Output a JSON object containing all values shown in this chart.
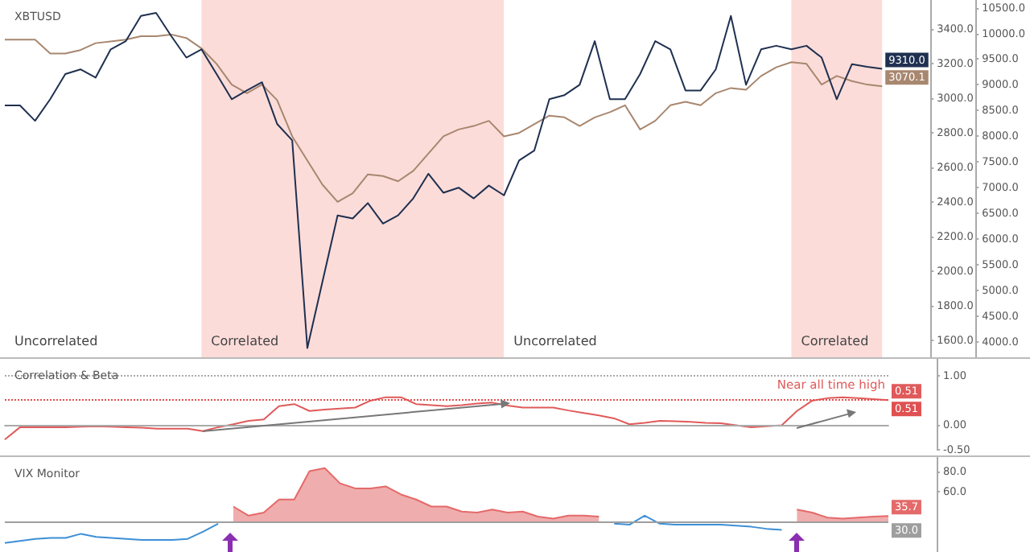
{
  "chart_data": [
    {
      "type": "line",
      "title": "XBTUSD",
      "tick_labels": "y",
      "ylim": [
        1500,
        3570
      ],
      "categories": [
        null,
        null,
        null,
        null,
        null,
        null,
        null,
        null,
        null,
        null,
        null,
        null,
        null,
        null,
        null,
        null,
        null,
        null,
        null,
        null,
        null,
        null,
        null,
        null,
        null,
        null,
        null,
        null,
        null,
        null,
        null,
        null,
        null,
        null,
        null,
        null,
        null,
        null,
        null,
        null,
        null,
        null,
        null,
        null,
        null,
        null,
        null,
        null,
        null,
        null,
        null,
        null,
        null,
        null,
        null,
        null,
        null,
        null,
        null
      ],
      "yticks": [
        {
          "value": 1600,
          "label": "1600.0"
        },
        {
          "value": 1800,
          "label": "1800.0"
        },
        {
          "value": 2000,
          "label": "2000.0"
        },
        {
          "value": 2200,
          "label": "2200.0"
        },
        {
          "value": 2400,
          "label": "2400.0"
        },
        {
          "value": 2600,
          "label": "2600.0"
        },
        {
          "value": 2800,
          "label": "2800.0"
        },
        {
          "value": 3000,
          "label": "3000.0"
        },
        {
          "value": 3200,
          "label": "3200.0"
        },
        {
          "value": 3400,
          "label": "3400.0"
        }
      ],
      "y2lim": [
        3700,
        10650
      ],
      "y2ticks": [
        {
          "value": 4000,
          "label": "4000.0"
        },
        {
          "value": 4500,
          "label": "4500.0"
        },
        {
          "value": 5000,
          "label": "5000.0"
        },
        {
          "value": 5500,
          "label": "5500.0"
        },
        {
          "value": 6000,
          "label": "6000.0"
        },
        {
          "value": 6500,
          "label": "6500.0"
        },
        {
          "value": 7000,
          "label": "7000.0"
        },
        {
          "value": 7500,
          "label": "7500.0"
        },
        {
          "value": 8000,
          "label": "8000.0"
        },
        {
          "value": 8500,
          "label": "8500.0"
        },
        {
          "value": 9000,
          "label": "9000.0"
        },
        {
          "value": 9500,
          "label": "9500.0"
        },
        {
          "value": 10000,
          "label": "10000.0"
        },
        {
          "value": 10500,
          "label": "10500.0"
        }
      ],
      "annotations": [
        "Uncorrelated",
        "Correlated",
        "Uncorrelated",
        "Correlated"
      ],
      "series": [
        {
          "color": "#a8876f",
          "values": [
            3340,
            3340,
            3340,
            3260,
            3260,
            3280,
            3320,
            3330,
            3340,
            3360,
            3360,
            3370,
            3350,
            3290,
            3200,
            3080,
            3030,
            3080,
            2990,
            2780,
            2640,
            2500,
            2400,
            2450,
            2560,
            2550,
            2520,
            2580,
            2680,
            2780,
            2820,
            2840,
            2870,
            2780,
            2800,
            2850,
            2900,
            2890,
            2840,
            2890,
            2920,
            2960,
            2820,
            2870,
            2960,
            2980,
            2960,
            3030,
            3060,
            3050,
            3130,
            3180,
            3210,
            3200,
            3080,
            3130,
            3100,
            3080,
            3070.1
          ],
          "value_labels": [
            null,
            null,
            null,
            null,
            null,
            null,
            null,
            null,
            null,
            null,
            null,
            null,
            null,
            null,
            null,
            null,
            null,
            null,
            null,
            null,
            null,
            null,
            null,
            null,
            null,
            null,
            null,
            null,
            null,
            null,
            null,
            null,
            null,
            null,
            null,
            null,
            null,
            null,
            null,
            null,
            null,
            null,
            null,
            null,
            null,
            null,
            null,
            null,
            null,
            null,
            null,
            null,
            null,
            null,
            null,
            null,
            null,
            null,
            "3070.1"
          ]
        },
        {
          "axis": "y2",
          "color": "#1f3050",
          "values": [
            8600,
            8600,
            8300,
            8720,
            9210,
            9300,
            9140,
            9690,
            9850,
            10340,
            10400,
            9950,
            9530,
            9690,
            9210,
            8720,
            8890,
            9050,
            8240,
            7920,
            3880,
            5170,
            6460,
            6400,
            6700,
            6300,
            6460,
            6790,
            7270,
            6900,
            7000,
            6790,
            7040,
            6850,
            7530,
            7720,
            8720,
            8800,
            9000,
            9850,
            8720,
            8720,
            9210,
            9850,
            9690,
            8890,
            8890,
            9300,
            10340,
            9000,
            9690,
            9760,
            9690,
            9760,
            9530,
            8720,
            9400,
            9350,
            9310
          ],
          "value_labels": [
            null,
            null,
            null,
            null,
            null,
            null,
            null,
            null,
            null,
            null,
            null,
            null,
            null,
            null,
            null,
            null,
            null,
            null,
            null,
            null,
            null,
            null,
            null,
            null,
            null,
            null,
            null,
            null,
            null,
            null,
            null,
            null,
            null,
            null,
            null,
            null,
            null,
            null,
            null,
            null,
            null,
            null,
            null,
            null,
            null,
            null,
            null,
            null,
            null,
            null,
            null,
            null,
            null,
            null,
            null,
            null,
            null,
            null,
            "9310.0"
          ]
        }
      ]
    },
    {
      "type": "line",
      "title": "Correlation & Beta",
      "tick_labels": "y",
      "ylim": [
        -0.5,
        1.35
      ],
      "categories": [
        null,
        null,
        null,
        null,
        null,
        null,
        null,
        null,
        null,
        null,
        null,
        null,
        null,
        null,
        null,
        null,
        null,
        null,
        null,
        null,
        null,
        null,
        null,
        null,
        null,
        null,
        null,
        null,
        null,
        null,
        null,
        null,
        null,
        null,
        null,
        null,
        null,
        null,
        null,
        null,
        null,
        null,
        null,
        null,
        null,
        null,
        null,
        null,
        null,
        null,
        null,
        null,
        null,
        null,
        null,
        null,
        null,
        null,
        null
      ],
      "yticks": [
        {
          "value": -0.5,
          "label": "-0.50"
        },
        {
          "value": 0,
          "label": "0.00"
        },
        {
          "value": 1,
          "label": "1.00"
        }
      ],
      "ref_lines": [
        {
          "axis": "y",
          "value": 1,
          "color": "#aaaaaa",
          "line_style": "dotted"
        },
        {
          "axis": "y",
          "value": 0,
          "color": "#aaaaaa",
          "line_style": "solid"
        },
        {
          "axis": "y",
          "value": 0.51,
          "label": "0.51",
          "color": "#e05050",
          "line_style": "dotted"
        }
      ],
      "annotations": [
        "Near all time high"
      ],
      "series": [
        {
          "color": "#e05a5a",
          "values": [
            -0.29,
            -0.04,
            -0.04,
            -0.04,
            -0.04,
            -0.03,
            -0.02,
            -0.03,
            -0.04,
            -0.05,
            -0.07,
            -0.07,
            -0.07,
            -0.12,
            -0.04,
            0.02,
            0.09,
            0.12,
            0.39,
            0.43,
            0.29,
            0.32,
            0.34,
            0.36,
            0.5,
            0.57,
            0.57,
            0.43,
            0.41,
            0.39,
            0.41,
            0.44,
            0.46,
            0.4,
            0.36,
            0.36,
            0.36,
            0.3,
            0.25,
            0.2,
            0.14,
            0.02,
            0.05,
            0.09,
            0.08,
            0.07,
            0.05,
            0.04,
            0,
            -0.04,
            -0.02,
            0,
            0.29,
            0.5,
            0.55,
            0.57,
            0.55,
            0.53,
            0.51
          ],
          "value_labels": [
            null,
            null,
            null,
            null,
            null,
            null,
            null,
            null,
            null,
            null,
            null,
            null,
            null,
            null,
            null,
            null,
            null,
            null,
            null,
            null,
            null,
            null,
            null,
            null,
            null,
            null,
            null,
            null,
            null,
            null,
            null,
            null,
            null,
            null,
            null,
            null,
            null,
            null,
            null,
            null,
            null,
            null,
            null,
            null,
            null,
            null,
            null,
            null,
            null,
            null,
            null,
            null,
            null,
            null,
            null,
            null,
            null,
            null,
            "0.51"
          ]
        }
      ]
    },
    {
      "type": "line",
      "title": "VIX Monitor",
      "tick_labels": "y",
      "ylim": [
        0,
        94
      ],
      "categories": [
        null,
        null,
        null,
        null,
        null,
        null,
        null,
        null,
        null,
        null,
        null,
        null,
        null,
        null,
        null,
        null,
        null,
        null,
        null,
        null,
        null,
        null,
        null,
        null,
        null,
        null,
        null,
        null,
        null,
        null,
        null,
        null,
        null,
        null,
        null,
        null,
        null,
        null,
        null,
        null,
        null,
        null,
        null,
        null,
        null,
        null,
        null,
        null,
        null,
        null,
        null,
        null,
        null,
        null,
        null,
        null,
        null,
        null,
        null
      ],
      "yticks": [
        {
          "value": 60,
          "label": "60.0"
        },
        {
          "value": 80,
          "label": "80.0"
        }
      ],
      "ref_lines": [
        {
          "axis": "y",
          "value": 30,
          "label": "30.0",
          "color": "#9e9e9e",
          "line_style": "solid"
        }
      ],
      "series": [
        {
          "color": "#3d8fd6",
          "values": [
            9,
            11,
            13,
            14,
            14,
            18,
            15,
            14,
            13,
            12,
            12,
            12,
            13,
            20,
            28,
            null,
            null,
            null,
            null,
            null,
            null,
            null,
            null,
            null,
            null,
            null,
            null,
            null,
            null,
            null,
            null,
            null,
            null,
            null,
            null,
            null,
            null,
            null,
            null,
            null,
            28,
            27,
            36,
            28,
            27,
            27,
            27,
            27,
            26,
            25,
            23,
            22,
            null,
            null,
            null,
            null,
            null,
            null,
            null
          ]
        },
        {
          "type": "area",
          "color": "#e46a6a",
          "values": [
            null,
            null,
            null,
            null,
            null,
            null,
            null,
            null,
            null,
            null,
            null,
            null,
            null,
            null,
            null,
            45,
            36,
            39,
            52,
            52,
            80,
            83,
            68,
            63,
            63,
            65,
            57,
            52,
            45,
            45,
            40,
            39,
            42,
            39,
            40,
            35,
            33,
            36,
            36,
            35,
            null,
            null,
            null,
            null,
            null,
            null,
            null,
            null,
            null,
            null,
            null,
            null,
            42,
            39,
            34,
            33,
            34,
            35,
            35.7
          ],
          "value_labels": [
            null,
            null,
            null,
            null,
            null,
            null,
            null,
            null,
            null,
            null,
            null,
            null,
            null,
            null,
            null,
            null,
            null,
            null,
            null,
            null,
            null,
            null,
            null,
            null,
            null,
            null,
            null,
            null,
            null,
            null,
            null,
            null,
            null,
            null,
            null,
            null,
            null,
            null,
            null,
            null,
            null,
            null,
            null,
            null,
            null,
            null,
            null,
            null,
            null,
            null,
            null,
            null,
            null,
            null,
            null,
            null,
            null,
            null,
            "35.7"
          ]
        }
      ]
    }
  ]
}
